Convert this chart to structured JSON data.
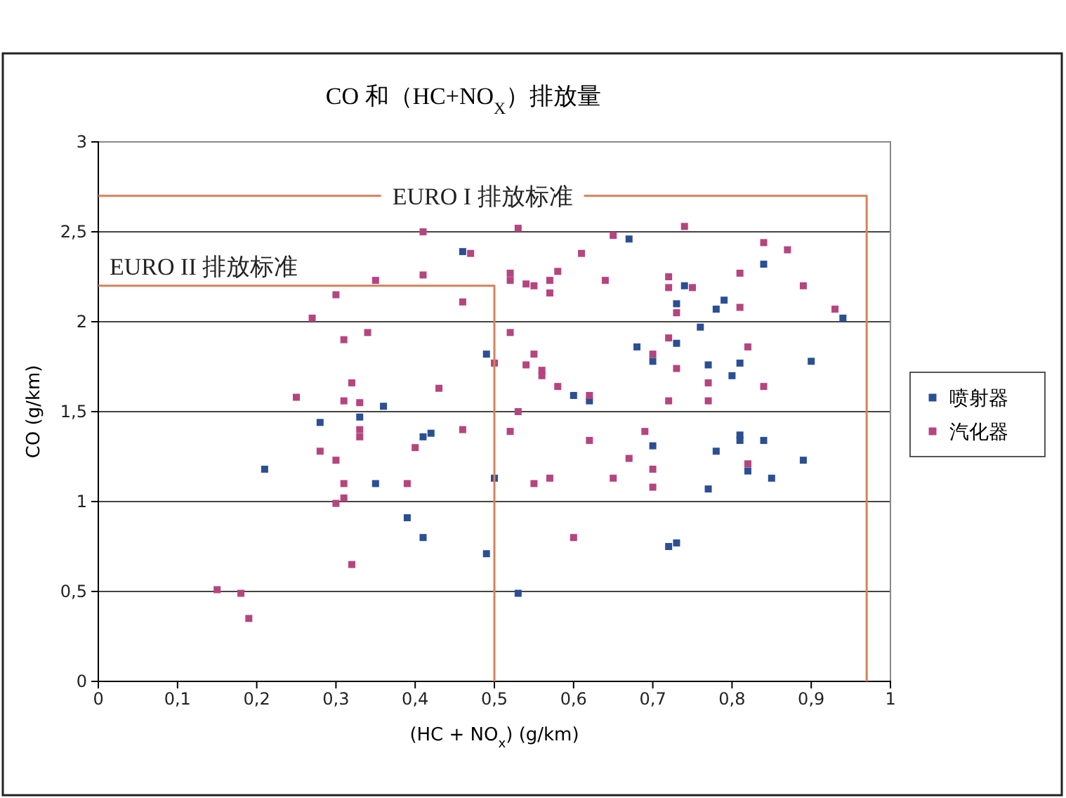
{
  "chart_data": {
    "type": "scatter",
    "title": "CO 和（HC+NO$_{X}$）排放量",
    "xlabel": "(HC + NO$_{x}$) (g/km)",
    "ylabel": "CO (g/km)",
    "xlim": [
      0,
      1
    ],
    "xticks": [
      0,
      {
        "value": 0.1,
        "label": "0,1"
      },
      {
        "value": 0.2,
        "label": "0,2"
      },
      {
        "value": 0.3,
        "label": "0,3"
      },
      {
        "value": 0.4,
        "label": "0,4"
      },
      {
        "value": 0.5,
        "label": "0,5"
      },
      {
        "value": 0.6,
        "label": "0,6"
      },
      {
        "value": 0.7,
        "label": "0,7"
      },
      {
        "value": 0.8,
        "label": "0,8"
      },
      {
        "value": 0.9,
        "label": "0,9"
      },
      1
    ],
    "ylim": [
      0,
      3
    ],
    "yticks": [
      0,
      {
        "value": 0.5,
        "label": "0,5"
      },
      1,
      {
        "value": 1.5,
        "label": "1,5"
      },
      2,
      {
        "value": 2.5,
        "label": "2,5"
      },
      3
    ],
    "grid": "y",
    "legend": "right",
    "marker": "square",
    "series": [
      {
        "name": "喷射器",
        "color": "#2b4f93",
        "x": [
          0.46,
          0.49,
          0.36,
          0.33,
          0.28,
          0.41,
          0.42,
          0.21,
          0.35,
          0.5,
          0.39,
          0.41,
          0.49,
          0.67,
          0.74,
          0.73,
          0.78,
          0.79,
          0.84,
          0.94,
          0.76,
          0.68,
          0.73,
          0.7,
          0.77,
          0.81,
          0.8,
          0.9,
          0.6,
          0.62,
          0.7,
          0.78,
          0.81,
          0.81,
          0.84,
          0.89,
          0.77,
          0.85,
          0.82,
          0.72,
          0.73,
          0.53
        ],
        "values": [
          2.39,
          1.82,
          1.53,
          1.47,
          1.44,
          1.36,
          1.38,
          1.18,
          1.1,
          1.13,
          0.91,
          0.8,
          0.71,
          2.46,
          2.2,
          2.1,
          2.07,
          2.12,
          2.32,
          2.02,
          1.97,
          1.86,
          1.88,
          1.78,
          1.76,
          1.77,
          1.7,
          1.78,
          1.59,
          1.56,
          1.31,
          1.28,
          1.37,
          1.34,
          1.34,
          1.23,
          1.07,
          1.13,
          1.17,
          0.75,
          0.77,
          0.49
        ]
      },
      {
        "name": "汽化器",
        "color": "#b5457f",
        "x": [
          0.41,
          0.47,
          0.41,
          0.35,
          0.3,
          0.46,
          0.27,
          0.31,
          0.34,
          0.32,
          0.43,
          0.25,
          0.31,
          0.33,
          0.33,
          0.33,
          0.46,
          0.28,
          0.4,
          0.3,
          0.31,
          0.39,
          0.31,
          0.3,
          0.5,
          0.32,
          0.15,
          0.18,
          0.19,
          0.53,
          0.65,
          0.74,
          0.52,
          0.52,
          0.54,
          0.55,
          0.57,
          0.57,
          0.58,
          0.61,
          0.64,
          0.72,
          0.72,
          0.75,
          0.73,
          0.81,
          0.81,
          0.84,
          0.87,
          0.89,
          0.93,
          0.52,
          0.54,
          0.55,
          0.56,
          0.56,
          0.58,
          0.62,
          0.7,
          0.72,
          0.73,
          0.72,
          0.77,
          0.77,
          0.82,
          0.84,
          0.53,
          0.52,
          0.62,
          0.69,
          0.67,
          0.7,
          0.7,
          0.65,
          0.55,
          0.57,
          0.82,
          0.6
        ],
        "values": [
          2.5,
          2.38,
          2.26,
          2.23,
          2.15,
          2.11,
          2.02,
          1.9,
          1.94,
          1.66,
          1.63,
          1.58,
          1.56,
          1.55,
          1.4,
          1.36,
          1.4,
          1.28,
          1.3,
          1.23,
          1.1,
          1.1,
          1.02,
          0.99,
          1.77,
          0.65,
          0.51,
          0.49,
          0.35,
          2.52,
          2.48,
          2.53,
          2.27,
          2.23,
          2.21,
          2.2,
          2.23,
          2.16,
          2.28,
          2.38,
          2.23,
          2.25,
          2.19,
          2.19,
          2.05,
          2.27,
          2.08,
          2.44,
          2.4,
          2.2,
          2.07,
          1.94,
          1.76,
          1.82,
          1.73,
          1.7,
          1.64,
          1.59,
          1.82,
          1.91,
          1.74,
          1.56,
          1.66,
          1.56,
          1.86,
          1.64,
          1.5,
          1.39,
          1.34,
          1.39,
          1.24,
          1.18,
          1.08,
          1.13,
          1.1,
          1.13,
          1.21,
          0.8
        ]
      },
      {
        "type": "line",
        "marker": "none",
        "name": "EURO I 排放标准",
        "color": "#d4825a",
        "x": [
          0,
          0.97,
          0.97
        ],
        "values": [
          2.7,
          2.7,
          0
        ]
      },
      {
        "type": "line",
        "marker": "none",
        "name": "EURO II 排放标准",
        "color": "#d4825a",
        "x": [
          0,
          0.5,
          0.5
        ],
        "values": [
          2.2,
          2.2,
          0
        ]
      }
    ]
  }
}
